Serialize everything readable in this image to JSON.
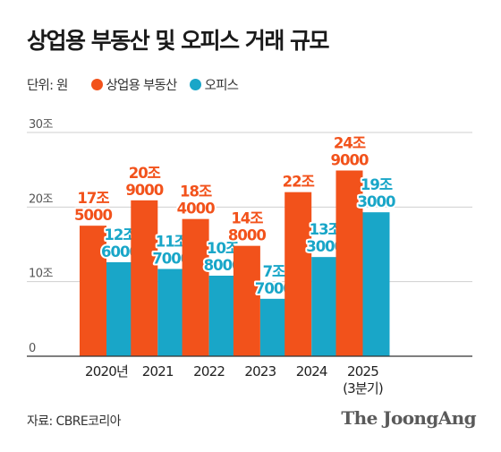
{
  "title": "상업용 부동산 및 오피스 거래 규모",
  "unit_label": "단위: 원",
  "source": "자료: CBRE코리아",
  "brand": "The JoongAng",
  "colors": {
    "commercial": "#f2521b",
    "office": "#19a6c8",
    "grid": "#cfcfcf",
    "axis": "#333333",
    "tick": "#555555"
  },
  "chart_data": {
    "type": "bar",
    "title": "상업용 부동산 및 오피스 거래 규모",
    "categories": [
      "2020년",
      "2021",
      "2022",
      "2023",
      "2024",
      "2025\n(3분기)"
    ],
    "y_ticks": [
      "0",
      "10조",
      "20조",
      "30조"
    ],
    "ylim": [
      0,
      30
    ],
    "grid": true,
    "legend": "top-left",
    "series": [
      {
        "name": "상업용 부동산",
        "color": "#f2521b",
        "values": [
          17.5,
          20.9,
          18.4,
          14.8,
          22,
          24.9
        ],
        "labels": [
          [
            "17조",
            "5000"
          ],
          [
            "20조",
            "9000"
          ],
          [
            "18조",
            "4000"
          ],
          [
            "14조",
            "8000"
          ],
          [
            "22조"
          ],
          [
            "24조",
            "9000"
          ]
        ]
      },
      {
        "name": "오피스",
        "color": "#19a6c8",
        "values": [
          12.6,
          11.7,
          10.8,
          7.7,
          13.3,
          19.3
        ],
        "labels": [
          [
            "12조",
            "6000"
          ],
          [
            "11조",
            "7000"
          ],
          [
            "10조",
            "8000"
          ],
          [
            "7조",
            "7000"
          ],
          [
            "13조",
            "3000"
          ],
          [
            "19조",
            "3000"
          ]
        ]
      }
    ]
  }
}
